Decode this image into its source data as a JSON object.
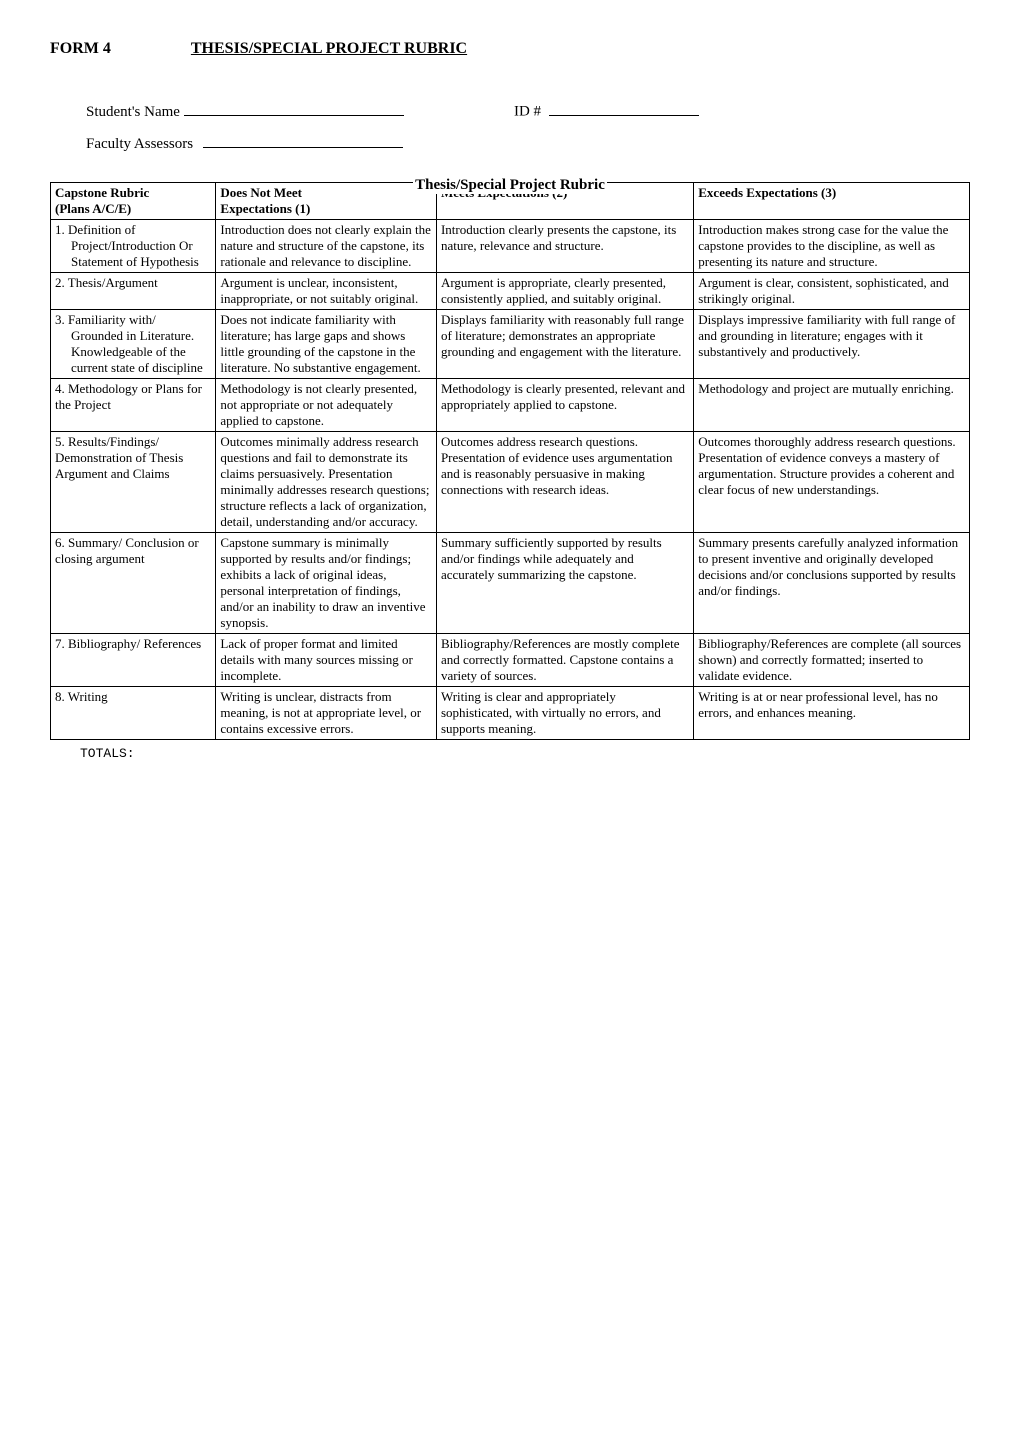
{
  "header": {
    "form_label": "FORM  4",
    "title": "THESIS/SPECIAL PROJECT RUBRIC",
    "student_label": "Student's Name",
    "id_label": "ID #",
    "assessors_label": "Faculty Assessors"
  },
  "rubric_heading": "Thesis/Special Project Rubric",
  "columns": [
    {
      "title": "Capstone Rubric",
      "subtitle": "(Plans A/C/E)"
    },
    {
      "title": "Does Not Meet",
      "subtitle": "Expectations (1)"
    },
    {
      "title": "Meets Expectations (2)",
      "subtitle": ""
    },
    {
      "title": "Exceeds Expectations (3)",
      "subtitle": ""
    }
  ],
  "rows": [
    {
      "label_main": "1. Definition of",
      "label_sub": "Project/Introduction Or Statement of Hypothesis",
      "c1": "Introduction does not clearly explain the nature and structure of the capstone, its rationale and relevance to discipline.",
      "c2": "Introduction clearly presents the capstone, its nature, relevance and structure.",
      "c3": "Introduction makes strong case for the value the capstone provides to the discipline, as well as presenting its nature and structure."
    },
    {
      "label_main": "2. Thesis/Argument",
      "label_sub": "",
      "c1": "Argument is unclear, inconsistent, inappropriate, or not suitably original.",
      "c2": "Argument is appropriate, clearly presented, consistently applied, and suitably original.",
      "c3": "Argument is clear, consistent, sophisticated, and strikingly original."
    },
    {
      "label_main": "3. Familiarity with/",
      "label_sub": "Grounded in Literature. Knowledgeable of the current state of discipline",
      "c1": "Does not indicate familiarity with literature; has large gaps and shows little grounding of the capstone in the literature. No substantive engagement.",
      "c2": "Displays familiarity with reasonably full range of literature; demonstrates an appropriate grounding and engagement with the literature.",
      "c3": "Displays impressive familiarity with full range of and grounding in literature; engages with it substantively and productively."
    },
    {
      "label_main": "4. Methodology or Plans for the  Project",
      "label_sub": "",
      "c1": "Methodology is not clearly presented, not appropriate or not adequately applied to capstone.",
      "c2": "Methodology is clearly presented, relevant and appropriately applied to capstone.",
      "c3": "Methodology and project are mutually enriching."
    },
    {
      "label_main": "5. Results/Findings/ Demonstration of Thesis Argument and Claims",
      "label_sub": "",
      "c1": "Outcomes minimally address research questions and fail to demonstrate its claims persuasively. Presentation minimally addresses research questions; structure reflects a lack of organization, detail, understanding and/or accuracy.",
      "c2": "Outcomes address research questions.  Presentation of evidence uses argumentation and is reasonably persuasive in making connections with research ideas.",
      "c3": "Outcomes thoroughly address research questions. Presentation of evidence conveys a mastery of argumentation.  Structure provides a coherent and clear focus of new understandings."
    },
    {
      "label_main": "6. Summary/ Conclusion or closing argument",
      "label_sub": "",
      "c1": "Capstone summary is minimally supported by results and/or findings; exhibits a lack of original ideas, personal interpretation of findings, and/or an inability to draw an inventive synopsis.",
      "c2": "Summary sufficiently supported by results and/or findings while adequately and accurately summarizing the capstone.",
      "c3": "Summary presents carefully analyzed information to present inventive and originally developed decisions and/or conclusions supported by results and/or findings."
    },
    {
      "label_main": "7. Bibliography/ References",
      "label_sub": "",
      "c1": "Lack of proper format and limited details with many sources missing or incomplete.",
      "c2": "Bibliography/References are mostly complete and correctly formatted. Capstone contains a variety of sources.",
      "c3": "Bibliography/References are complete (all sources shown) and correctly formatted; inserted to validate evidence."
    },
    {
      "label_main": "8. Writing",
      "label_sub": "",
      "c1": "Writing is unclear, distracts from meaning, is not at appropriate level, or contains excessive errors.",
      "c2": "Writing is clear and appropriately sophisticated, with virtually no errors, and supports meaning.",
      "c3": "Writing is at or near professional level, has no errors, and enhances meaning."
    }
  ],
  "totals_label": "TOTALS:"
}
